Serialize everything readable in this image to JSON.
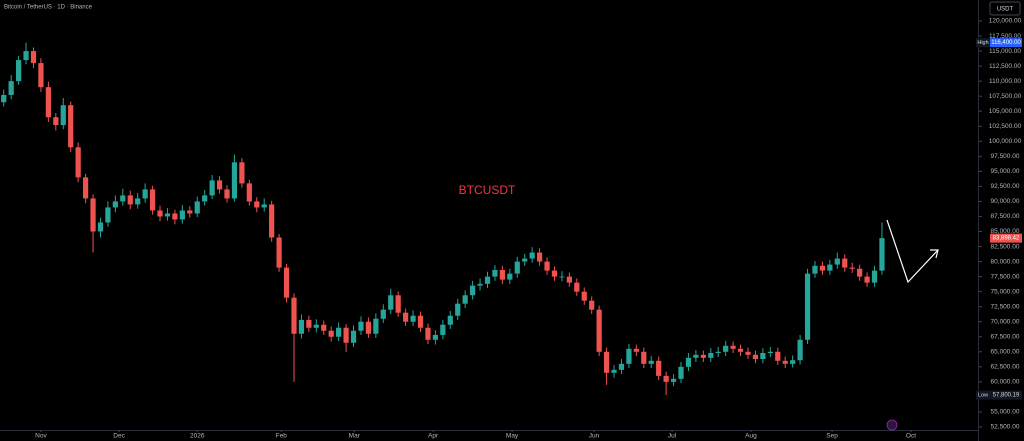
{
  "chart_data": {
    "type": "candlestick",
    "title": "Bitcoin / TetherUS · 1D · Binance",
    "annotation": "BTCUSDT",
    "currency": "USDT",
    "up_color": "#26a69a",
    "down_color": "#ef5350",
    "annotation_color": "#f23645",
    "xlim": [
      -0.5,
      130.5
    ],
    "xticks": [
      {
        "value": 5,
        "label": "Nov"
      },
      {
        "value": 15.5,
        "label": "Dec"
      },
      {
        "value": 26,
        "label": "2026"
      },
      {
        "value": 37.3,
        "label": "Feb"
      },
      {
        "value": 47.1,
        "label": "Mar"
      },
      {
        "value": 57.7,
        "label": "Apr"
      },
      {
        "value": 68.3,
        "label": "May"
      },
      {
        "value": 79.3,
        "label": "Jun"
      },
      {
        "value": 89.8,
        "label": "Jul"
      },
      {
        "value": 100.4,
        "label": "Aug"
      },
      {
        "value": 111.3,
        "label": "Sep"
      },
      {
        "value": 121.9,
        "label": "Oct"
      }
    ],
    "ylim": [
      51998,
      123491
    ],
    "yticks": [
      {
        "value": 52500,
        "label": "52,500.00"
      },
      {
        "value": 55000,
        "label": "55,000.00"
      },
      {
        "value": 57500,
        "label": "57,500.00"
      },
      {
        "value": 60000,
        "label": "60,000.00"
      },
      {
        "value": 62500,
        "label": "62,500.00"
      },
      {
        "value": 65000,
        "label": "65,000.00"
      },
      {
        "value": 67500,
        "label": "67,500.00"
      },
      {
        "value": 70000,
        "label": "70,000.00"
      },
      {
        "value": 72500,
        "label": "72,500.00"
      },
      {
        "value": 75000,
        "label": "75,000.00"
      },
      {
        "value": 77500,
        "label": "77,500.00"
      },
      {
        "value": 80000,
        "label": "80,000.00"
      },
      {
        "value": 82500,
        "label": "82,500.00"
      },
      {
        "value": 85000,
        "label": "85,000.00"
      },
      {
        "value": 87500,
        "label": "87,500.00"
      },
      {
        "value": 90000,
        "label": "90,000.00"
      },
      {
        "value": 92500,
        "label": "92,500.00"
      },
      {
        "value": 95000,
        "label": "95,000.00"
      },
      {
        "value": 97500,
        "label": "97,500.00"
      },
      {
        "value": 100000,
        "label": "100,000.00"
      },
      {
        "value": 102500,
        "label": "102,500.00"
      },
      {
        "value": 105000,
        "label": "105,000.00"
      },
      {
        "value": 107500,
        "label": "107,500.00"
      },
      {
        "value": 110000,
        "label": "110,000.00"
      },
      {
        "value": 112500,
        "label": "112,500.00"
      },
      {
        "value": 115000,
        "label": "115,000.00"
      },
      {
        "value": 117500,
        "label": "117,500.00"
      },
      {
        "value": 120000,
        "label": "120,000.00"
      }
    ],
    "high_marker": {
      "name": "High",
      "value": 116400,
      "label": "116,400.00"
    },
    "low_marker": {
      "name": "Low",
      "value": 57800.19,
      "label": "57,800.19"
    },
    "last_price": {
      "value": 83898.42,
      "label": "83,898.42"
    },
    "candles": [
      [
        106500,
        108600,
        105800,
        107700
      ],
      [
        107700,
        111000,
        107000,
        110000
      ],
      [
        110000,
        114200,
        109400,
        113500
      ],
      [
        113500,
        116400,
        112800,
        115000
      ],
      [
        115000,
        115600,
        112200,
        113000
      ],
      [
        113000,
        113800,
        108200,
        109000
      ],
      [
        109000,
        109900,
        103200,
        104000
      ],
      [
        104000,
        104700,
        101800,
        102700
      ],
      [
        102700,
        107200,
        102000,
        106000
      ],
      [
        106000,
        106600,
        98200,
        99000
      ],
      [
        99000,
        99800,
        93200,
        94000
      ],
      [
        94000,
        94600,
        89700,
        90500
      ],
      [
        90500,
        91200,
        81500,
        85000
      ],
      [
        85000,
        87300,
        84000,
        86500
      ],
      [
        86500,
        90000,
        85800,
        89000
      ],
      [
        89000,
        91000,
        88200,
        90000
      ],
      [
        90000,
        92100,
        89300,
        91000
      ],
      [
        91000,
        91800,
        88700,
        89500
      ],
      [
        89500,
        91400,
        88800,
        90500
      ],
      [
        90500,
        93000,
        89800,
        92000
      ],
      [
        92000,
        92600,
        87800,
        88500
      ],
      [
        88500,
        89300,
        86700,
        87500
      ],
      [
        87500,
        88900,
        86800,
        88000
      ],
      [
        88000,
        88600,
        86200,
        87000
      ],
      [
        87000,
        89400,
        86300,
        88500
      ],
      [
        88500,
        89200,
        87300,
        88000
      ],
      [
        88000,
        90800,
        87400,
        90000
      ],
      [
        90000,
        91900,
        89300,
        91000
      ],
      [
        91000,
        94400,
        90400,
        93500
      ],
      [
        93500,
        94200,
        91300,
        92000
      ],
      [
        92000,
        92700,
        89800,
        90500
      ],
      [
        90500,
        97800,
        90000,
        96500
      ],
      [
        96500,
        97200,
        92300,
        93000
      ],
      [
        93000,
        93600,
        89300,
        90000
      ],
      [
        90000,
        90700,
        88200,
        89000
      ],
      [
        89000,
        90500,
        88300,
        89500
      ],
      [
        89500,
        90100,
        83300,
        84000
      ],
      [
        84000,
        84600,
        78300,
        79000
      ],
      [
        79000,
        79600,
        73200,
        74000
      ],
      [
        74000,
        74700,
        60000,
        68000
      ],
      [
        68000,
        71200,
        67200,
        70300
      ],
      [
        70300,
        71000,
        68300,
        69000
      ],
      [
        69000,
        70400,
        68200,
        69500
      ],
      [
        69500,
        70200,
        67800,
        68500
      ],
      [
        68500,
        69200,
        66700,
        67500
      ],
      [
        67500,
        69900,
        66800,
        69000
      ],
      [
        69000,
        69600,
        65000,
        66500
      ],
      [
        66500,
        69400,
        65800,
        68500
      ],
      [
        68500,
        70900,
        67800,
        70000
      ],
      [
        70000,
        70700,
        67300,
        68000
      ],
      [
        68000,
        71400,
        67300,
        70500
      ],
      [
        70500,
        72900,
        69800,
        72000
      ],
      [
        72000,
        75500,
        71300,
        74400
      ],
      [
        74400,
        75000,
        70800,
        71500
      ],
      [
        71500,
        72200,
        69300,
        70000
      ],
      [
        70000,
        71900,
        69300,
        71000
      ],
      [
        71000,
        71700,
        68300,
        69000
      ],
      [
        69000,
        69700,
        66300,
        67000
      ],
      [
        67000,
        68600,
        66200,
        67800
      ],
      [
        67800,
        70300,
        67100,
        69500
      ],
      [
        69500,
        71800,
        68800,
        71000
      ],
      [
        71000,
        73800,
        70300,
        73000
      ],
      [
        73000,
        75200,
        72300,
        74400
      ],
      [
        74400,
        76800,
        73700,
        76000
      ],
      [
        76000,
        77200,
        75200,
        76300
      ],
      [
        76300,
        78300,
        75600,
        77500
      ],
      [
        77500,
        79400,
        76800,
        78600
      ],
      [
        78600,
        79300,
        76300,
        77000
      ],
      [
        77000,
        78800,
        76300,
        78000
      ],
      [
        78000,
        80800,
        77300,
        80000
      ],
      [
        80000,
        81300,
        79300,
        80500
      ],
      [
        80500,
        82400,
        79800,
        81500
      ],
      [
        81500,
        82200,
        79300,
        80000
      ],
      [
        80000,
        80700,
        77800,
        78500
      ],
      [
        78500,
        79200,
        76800,
        77500
      ],
      [
        77500,
        78400,
        76700,
        77500
      ],
      [
        77500,
        78200,
        75800,
        76500
      ],
      [
        76500,
        77200,
        74300,
        75000
      ],
      [
        75000,
        75700,
        72800,
        73500
      ],
      [
        73500,
        74200,
        71300,
        72000
      ],
      [
        72000,
        72700,
        64300,
        65000
      ],
      [
        65000,
        65700,
        59500,
        61500
      ],
      [
        61500,
        62800,
        60700,
        62000
      ],
      [
        62000,
        63800,
        61300,
        63000
      ],
      [
        63000,
        66300,
        62300,
        65500
      ],
      [
        65500,
        66200,
        64300,
        65000
      ],
      [
        65000,
        65700,
        62300,
        63000
      ],
      [
        63000,
        64300,
        62300,
        63500
      ],
      [
        63500,
        64200,
        60300,
        61000
      ],
      [
        61000,
        61700,
        57800.19,
        60000
      ],
      [
        60000,
        61300,
        59300,
        60500
      ],
      [
        60500,
        63300,
        59800,
        62500
      ],
      [
        62500,
        64800,
        61800,
        64000
      ],
      [
        64000,
        65300,
        63300,
        64500
      ],
      [
        64500,
        65200,
        63300,
        64000
      ],
      [
        64000,
        65600,
        63300,
        64800
      ],
      [
        64800,
        65800,
        64100,
        65000
      ],
      [
        65000,
        66800,
        64300,
        66000
      ],
      [
        66000,
        66700,
        64800,
        65500
      ],
      [
        65500,
        66200,
        64300,
        65000
      ],
      [
        65000,
        65700,
        63800,
        64500
      ],
      [
        64500,
        65200,
        63100,
        63800
      ],
      [
        63800,
        65600,
        63100,
        64800
      ],
      [
        64800,
        65800,
        64100,
        65000
      ],
      [
        65000,
        65700,
        62800,
        63500
      ],
      [
        63500,
        64200,
        62300,
        63000
      ],
      [
        63000,
        64400,
        62400,
        63600
      ],
      [
        63600,
        67800,
        62900,
        67000
      ],
      [
        67000,
        78800,
        66300,
        78000
      ],
      [
        78000,
        80100,
        77300,
        79300
      ],
      [
        79300,
        80000,
        77800,
        78500
      ],
      [
        78500,
        80300,
        77800,
        79500
      ],
      [
        79500,
        81500,
        78800,
        80500
      ],
      [
        80500,
        81200,
        78300,
        79000
      ],
      [
        79000,
        79800,
        78100,
        78800
      ],
      [
        78800,
        79500,
        76800,
        77500
      ],
      [
        77500,
        78200,
        75800,
        76500
      ],
      [
        76500,
        79300,
        75800,
        78500
      ],
      [
        78500,
        86500,
        77800,
        83898.42
      ]
    ]
  }
}
